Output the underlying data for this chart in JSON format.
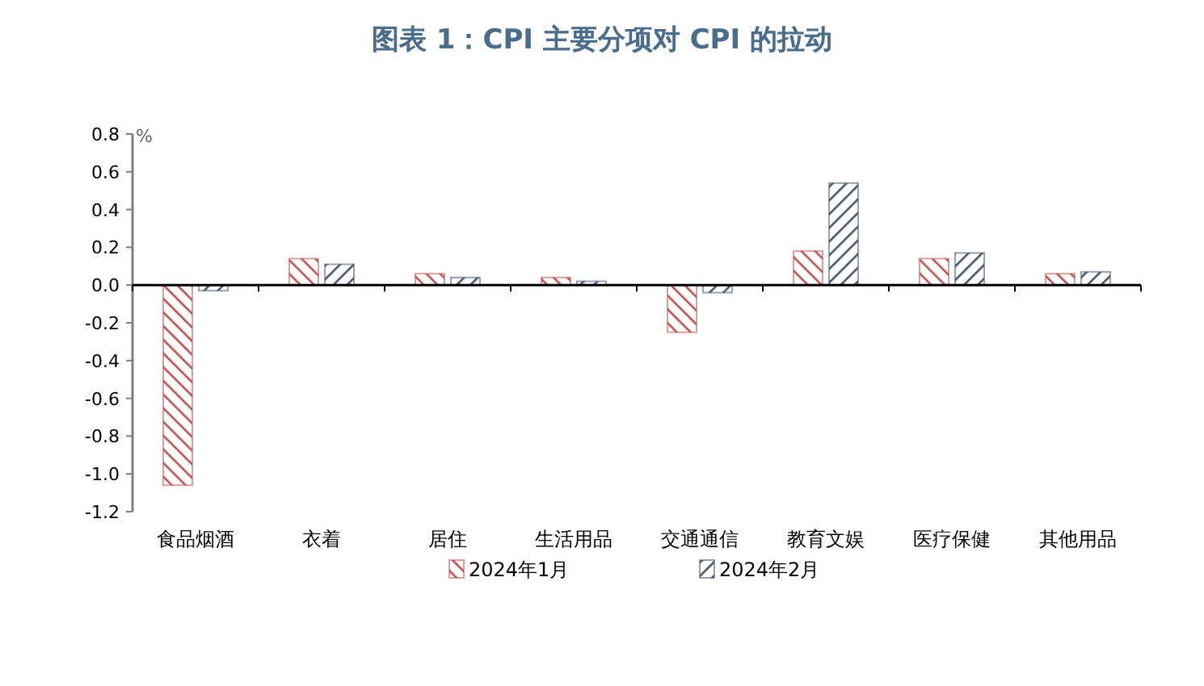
{
  "chart_data": {
    "type": "bar",
    "title": "图表 1：CPI 主要分项对 CPI 的拉动",
    "ylabel": "%",
    "categories": [
      "食品烟酒",
      "衣着",
      "居住",
      "生活用品",
      "交通通信",
      "教育文娱",
      "医疗保健",
      "其他用品"
    ],
    "series": [
      {
        "name": "2024年1月",
        "color": "#c0504d",
        "values": [
          -1.06,
          0.14,
          0.06,
          0.04,
          -0.25,
          0.18,
          0.14,
          0.06
        ]
      },
      {
        "name": "2024年2月",
        "color": "#44546a",
        "values": [
          -0.03,
          0.11,
          0.04,
          0.02,
          -0.04,
          0.54,
          0.17,
          0.07
        ]
      }
    ],
    "ylim": [
      -1.2,
      0.8
    ],
    "yticks": [
      -1.2,
      {
        "value": -1.0,
        "label": "-1.0"
      },
      -0.8,
      -0.6,
      -0.4,
      -0.2,
      {
        "value": 0,
        "label": "0.0"
      },
      0.2,
      0.4,
      0.6,
      0.8
    ],
    "legend": "bottom"
  }
}
